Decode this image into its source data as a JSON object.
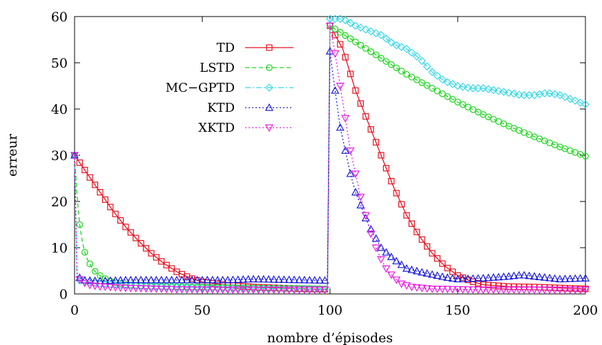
{
  "chart_data": {
    "type": "line",
    "xlabel": "nombre d’épisodes",
    "ylabel": "erreur",
    "xlim": [
      0,
      200
    ],
    "ylim": [
      0,
      60
    ],
    "xticks": [
      0,
      50,
      100,
      150,
      200
    ],
    "yticks": [
      0,
      10,
      20,
      30,
      40,
      50,
      60
    ],
    "x_tick_labels": [
      "0",
      "50",
      "100",
      "150",
      "200"
    ],
    "y_tick_labels": [
      "0",
      "10",
      "20",
      "30",
      "40",
      "50",
      "60"
    ],
    "grid": false,
    "legend_position": "top-center",
    "series": [
      {
        "name": "TD",
        "color": "#e8101e",
        "dash": "solid",
        "marker": "square",
        "points": [
          [
            0,
            30
          ],
          [
            5,
            26
          ],
          [
            10,
            22
          ],
          [
            15,
            18
          ],
          [
            20,
            14.5
          ],
          [
            25,
            11.5
          ],
          [
            30,
            8.8
          ],
          [
            35,
            6.6
          ],
          [
            40,
            4.8
          ],
          [
            45,
            3.5
          ],
          [
            50,
            2.6
          ],
          [
            60,
            1.9
          ],
          [
            70,
            1.5
          ],
          [
            80,
            1.3
          ],
          [
            90,
            1.1
          ],
          [
            99,
            1.0
          ],
          [
            100,
            58
          ],
          [
            105,
            53
          ],
          [
            110,
            44
          ],
          [
            115,
            37
          ],
          [
            120,
            30
          ],
          [
            125,
            23
          ],
          [
            130,
            17
          ],
          [
            135,
            12.5
          ],
          [
            140,
            8.8
          ],
          [
            145,
            6
          ],
          [
            150,
            4
          ],
          [
            155,
            2.8
          ],
          [
            160,
            2.0
          ],
          [
            170,
            1.6
          ],
          [
            180,
            1.5
          ],
          [
            190,
            1.3
          ],
          [
            200,
            1.1
          ]
        ]
      },
      {
        "name": "LSTD",
        "color": "#19d619",
        "dash": "dashed",
        "marker": "circle",
        "points": [
          [
            0,
            30
          ],
          [
            1,
            21
          ],
          [
            2,
            15
          ],
          [
            3,
            11.5
          ],
          [
            4,
            9
          ],
          [
            5,
            7.5
          ],
          [
            7,
            5.5
          ],
          [
            9,
            4.3
          ],
          [
            12,
            3.3
          ],
          [
            15,
            2.6
          ],
          [
            20,
            2.0
          ],
          [
            30,
            1.7
          ],
          [
            50,
            1.5
          ],
          [
            70,
            1.3
          ],
          [
            90,
            1.2
          ],
          [
            99,
            1.1
          ],
          [
            100,
            58
          ],
          [
            110,
            54.5
          ],
          [
            120,
            51
          ],
          [
            130,
            47.5
          ],
          [
            140,
            44.5
          ],
          [
            150,
            41.5
          ],
          [
            160,
            38.8
          ],
          [
            170,
            36.3
          ],
          [
            180,
            34
          ],
          [
            190,
            31.8
          ],
          [
            200,
            29.8
          ]
        ]
      },
      {
        "name": "MC−GPTD",
        "color": "#35d8e8",
        "dash": "dashdot",
        "marker": "diamond",
        "points": [
          [
            0,
            30
          ],
          [
            1,
            3
          ],
          [
            10,
            2.2
          ],
          [
            30,
            1.6
          ],
          [
            50,
            1.3
          ],
          [
            99,
            1.0
          ],
          [
            100,
            59.5
          ],
          [
            105,
            59.5
          ],
          [
            110,
            58
          ],
          [
            115,
            57
          ],
          [
            120,
            56
          ],
          [
            125,
            54
          ],
          [
            130,
            53
          ],
          [
            135,
            51
          ],
          [
            140,
            48
          ],
          [
            145,
            46
          ],
          [
            150,
            45
          ],
          [
            155,
            44.5
          ],
          [
            160,
            44.5
          ],
          [
            165,
            44
          ],
          [
            170,
            43.5
          ],
          [
            175,
            43
          ],
          [
            180,
            43
          ],
          [
            185,
            43.5
          ],
          [
            190,
            43
          ],
          [
            195,
            42
          ],
          [
            200,
            41
          ]
        ]
      },
      {
        "name": "KTD",
        "color": "#1a1adc",
        "dash": "dotted",
        "marker": "triangle-up",
        "points": [
          [
            0,
            30
          ],
          [
            1,
            4
          ],
          [
            3,
            3
          ],
          [
            10,
            2.8
          ],
          [
            20,
            3
          ],
          [
            30,
            3
          ],
          [
            40,
            3
          ],
          [
            50,
            3
          ],
          [
            60,
            3
          ],
          [
            70,
            3.2
          ],
          [
            80,
            3.1
          ],
          [
            90,
            3
          ],
          [
            99,
            2.9
          ],
          [
            100,
            52.5
          ],
          [
            101,
            48
          ],
          [
            102,
            44
          ],
          [
            103,
            40
          ],
          [
            104,
            36
          ],
          [
            106,
            31
          ],
          [
            108,
            26
          ],
          [
            110,
            22
          ],
          [
            115,
            15
          ],
          [
            120,
            10
          ],
          [
            125,
            7.5
          ],
          [
            130,
            5.5
          ],
          [
            135,
            4.8
          ],
          [
            140,
            4.2
          ],
          [
            145,
            3.6
          ],
          [
            150,
            3.2
          ],
          [
            160,
            3.4
          ],
          [
            170,
            3.8
          ],
          [
            175,
            4.1
          ],
          [
            180,
            3.8
          ],
          [
            190,
            3.2
          ],
          [
            200,
            3.4
          ]
        ]
      },
      {
        "name": "XKTD",
        "color": "#e81ae0",
        "dash": "dotted",
        "marker": "triangle-down",
        "points": [
          [
            0,
            30
          ],
          [
            1,
            3.5
          ],
          [
            5,
            2.0
          ],
          [
            10,
            1.6
          ],
          [
            20,
            1.3
          ],
          [
            40,
            1.0
          ],
          [
            60,
            0.9
          ],
          [
            99,
            0.9
          ],
          [
            100,
            58
          ],
          [
            102,
            52
          ],
          [
            104,
            45
          ],
          [
            106,
            38
          ],
          [
            108,
            31
          ],
          [
            110,
            26
          ],
          [
            112,
            21
          ],
          [
            114,
            17
          ],
          [
            116,
            13
          ],
          [
            118,
            10
          ],
          [
            120,
            7.5
          ],
          [
            122,
            5.5
          ],
          [
            125,
            3.5
          ],
          [
            128,
            2.2
          ],
          [
            132,
            1.5
          ],
          [
            140,
            1.1
          ],
          [
            160,
            0.9
          ],
          [
            180,
            0.9
          ],
          [
            200,
            0.9
          ]
        ]
      }
    ]
  }
}
